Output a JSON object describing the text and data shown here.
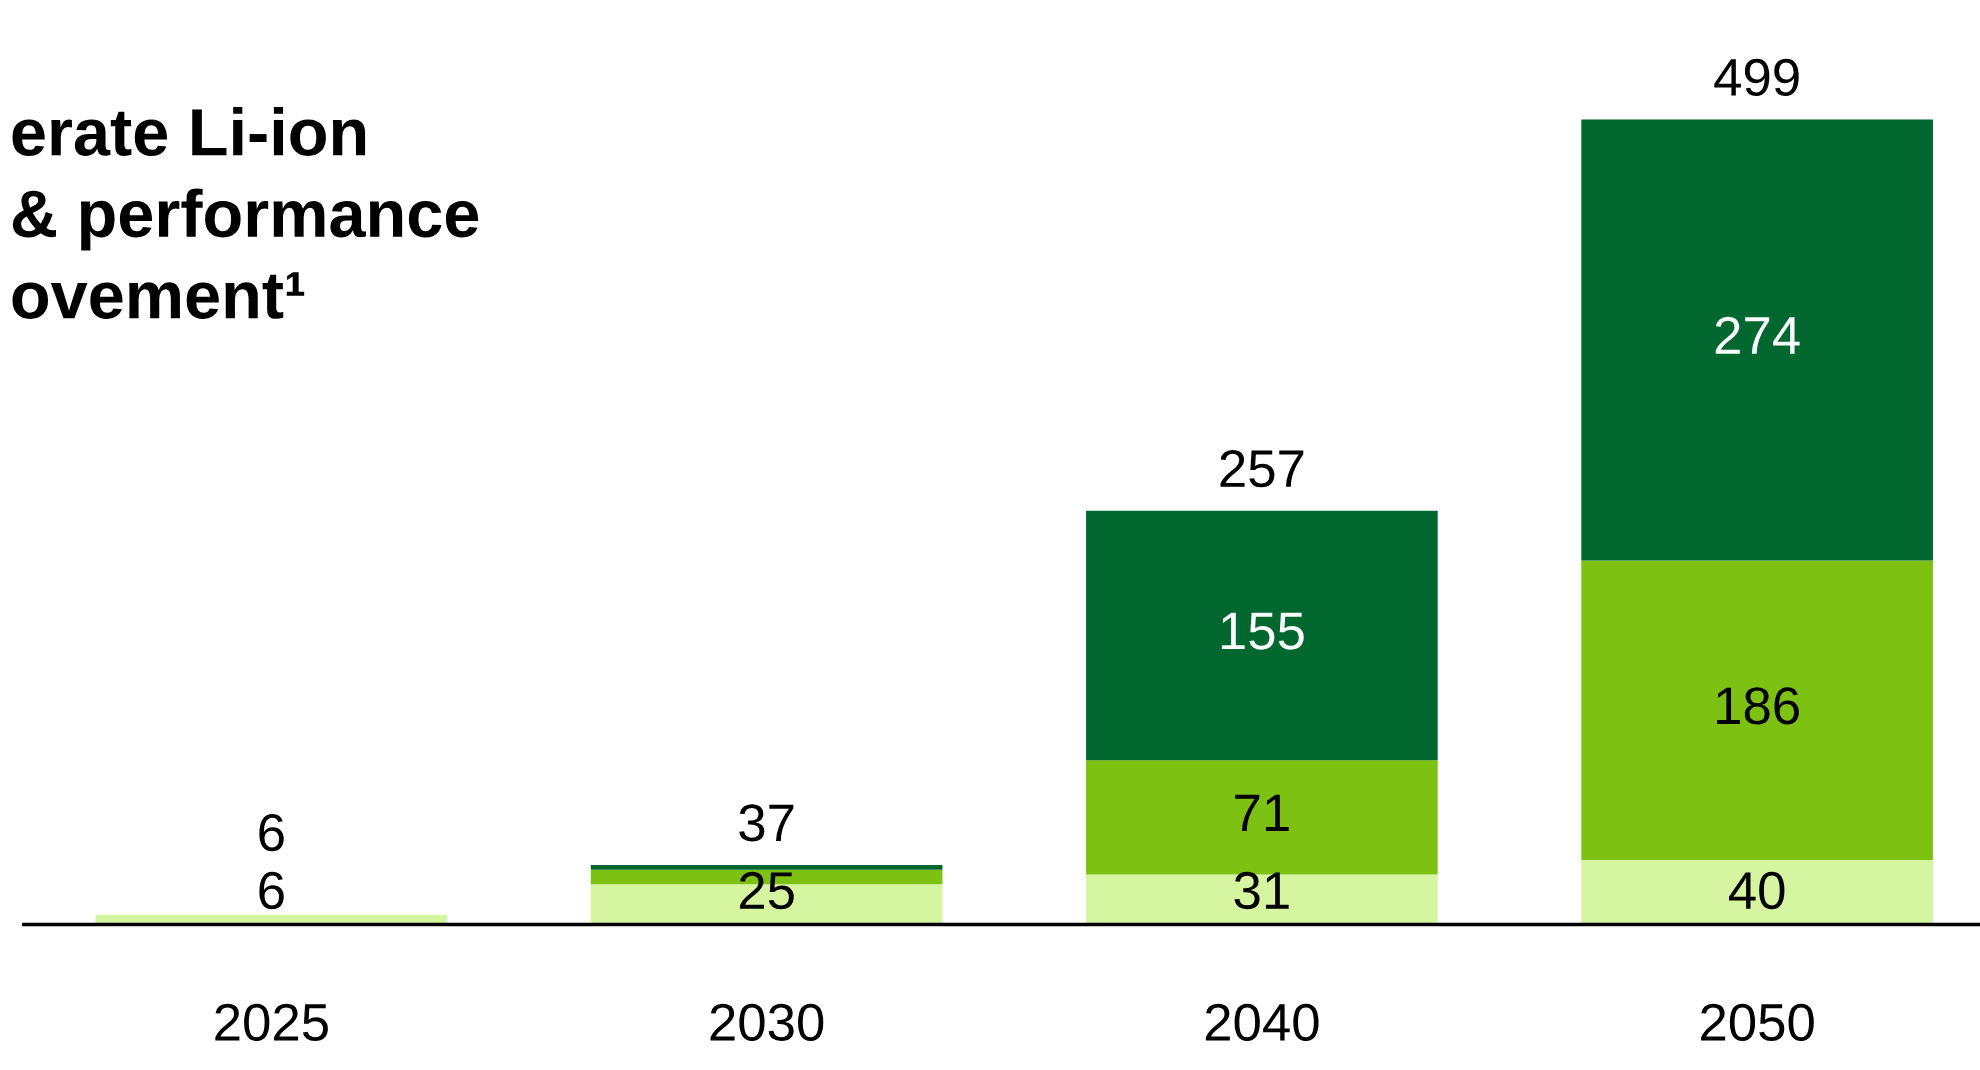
{
  "chart_data": {
    "type": "bar",
    "stacked": true,
    "title": "erate Li-ion\n& performance\novement¹",
    "categories": [
      "2025",
      "2030",
      "2040",
      "2050"
    ],
    "series": [
      {
        "color": "#d5f5a1",
        "values": [
          6,
          25,
          31,
          40
        ],
        "value_labels": [
          "6",
          "25",
          "31",
          "40"
        ]
      },
      {
        "color": "#7dc113",
        "values": [
          0,
          9,
          71,
          186
        ],
        "value_labels": [
          null,
          null,
          "71",
          "186"
        ]
      },
      {
        "color": "#00672f",
        "values": [
          0,
          3,
          155,
          274
        ],
        "value_labels": [
          null,
          null,
          "155",
          "274"
        ]
      }
    ],
    "totals": [
      "6",
      "37",
      "257",
      "499"
    ],
    "tick_labels": "x",
    "grid": false,
    "legend": false
  }
}
